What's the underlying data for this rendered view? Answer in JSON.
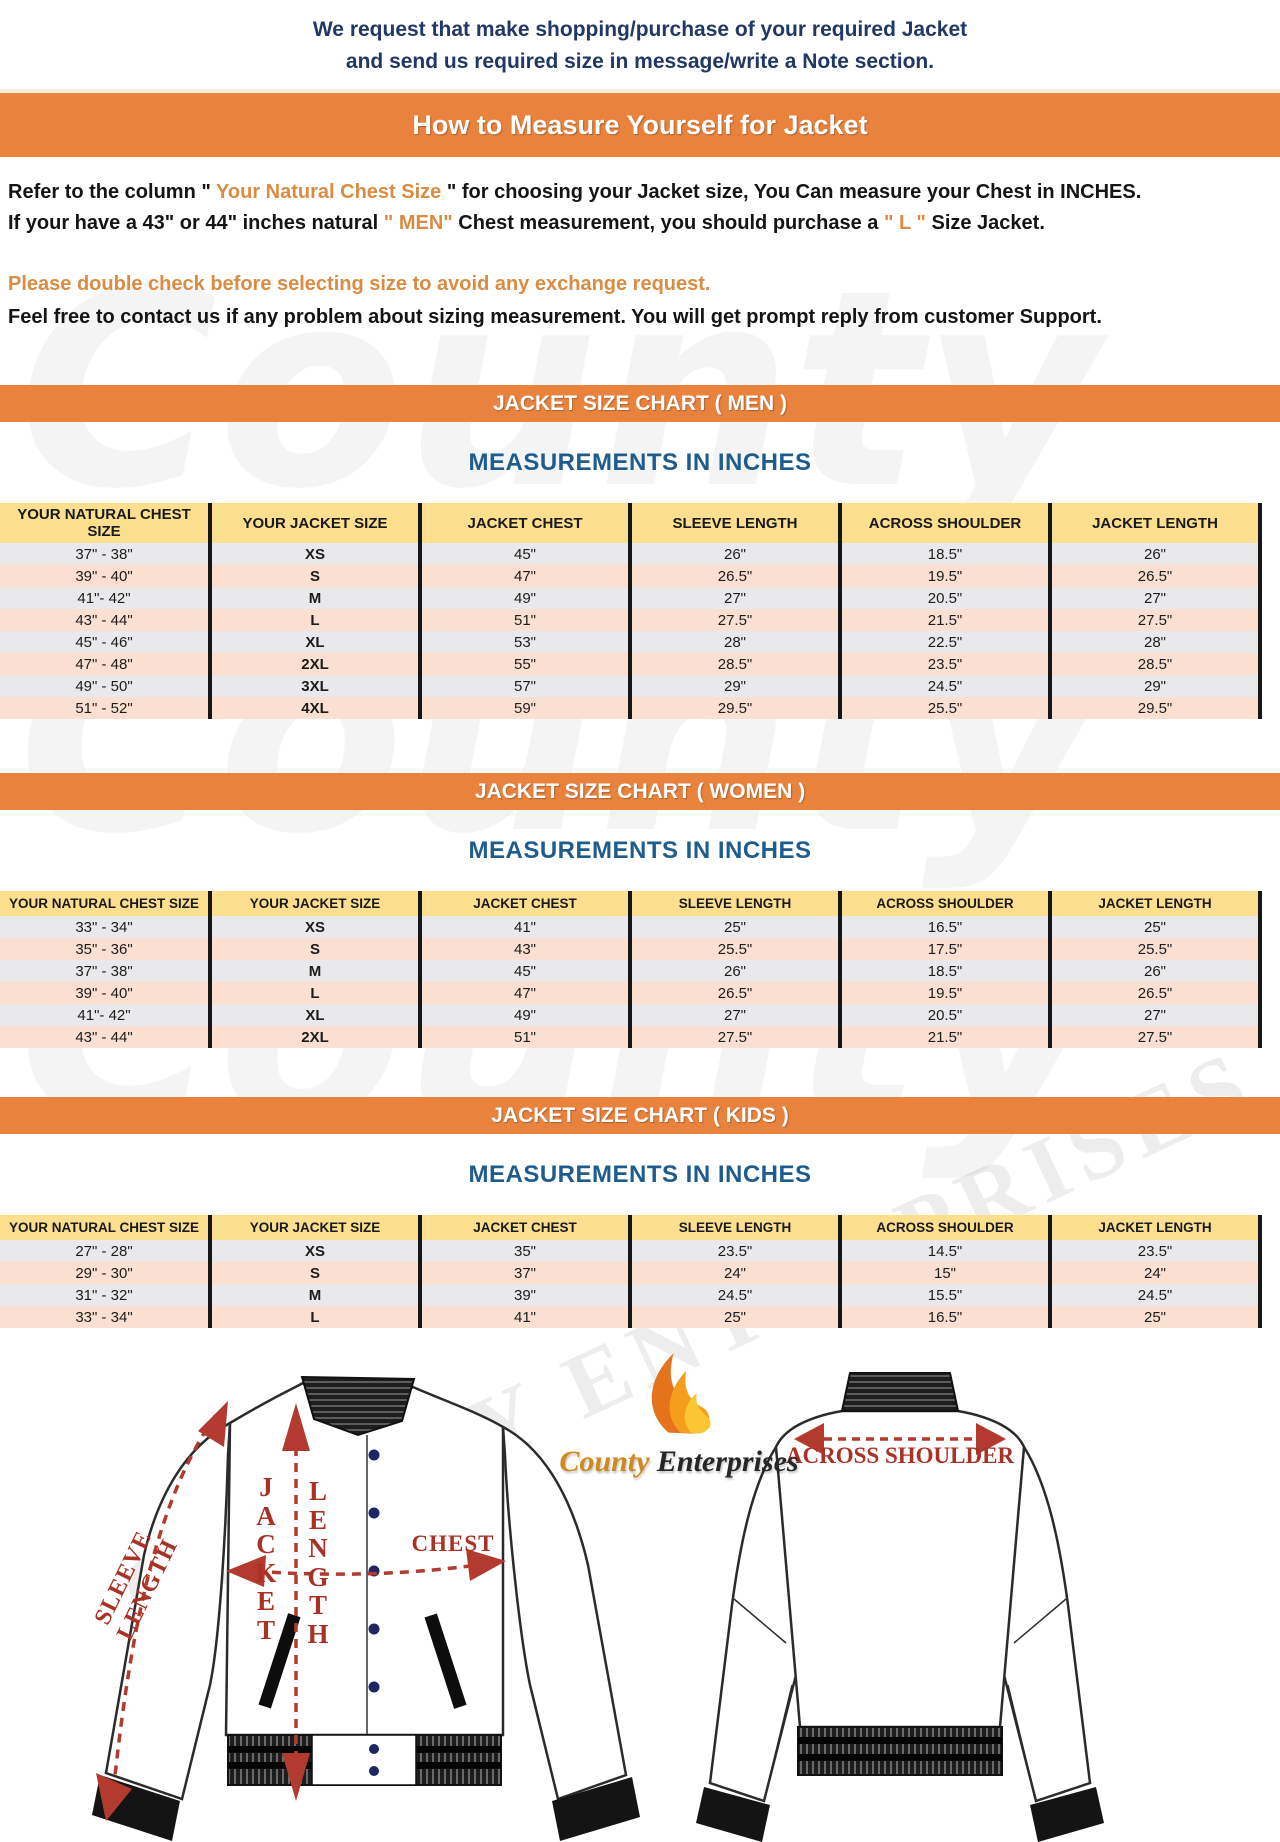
{
  "colors": {
    "banner_orange": "#E8823C",
    "accent_orange": "#D98C42",
    "note_navy": "#1F3864",
    "heading_blue": "#1F5C8E",
    "diagram_red": "#A93226",
    "table_header_yellow": "#FBDE8E",
    "row_gray": "#E9E9EB",
    "row_pink": "#FBDFD0",
    "button_navy": "#1E2663"
  },
  "top_note": {
    "line1": "We request that make shopping/purchase of your required Jacket",
    "line2": "and send us required size in message/write a Note section."
  },
  "main_banner": "How to Measure Yourself for Jacket",
  "intro": {
    "refer": {
      "pre": "Refer to the column \" ",
      "highlight": "Your Natural Chest Size",
      "post": " \" for choosing your Jacket size, You Can measure your Chest in INCHES."
    },
    "size_line": {
      "pre": "If your have a 43\" or 44\"  inches natural ",
      "men": "\" MEN\"",
      "mid": " Chest measurement, you should purchase a ",
      "l": "\" L \"",
      "post": " Size Jacket."
    },
    "warning": "Please double check before selecting size to avoid any exchange request.",
    "contact": "Feel free to contact us if any problem about sizing measurement. You will get prompt reply from customer Support."
  },
  "charts": {
    "measurements_heading": "MEASUREMENTS IN INCHES",
    "columns": [
      "YOUR NATURAL CHEST SIZE",
      "YOUR JACKET SIZE",
      "JACKET CHEST",
      "SLEEVE LENGTH",
      "ACROSS SHOULDER",
      "JACKET LENGTH"
    ],
    "men": {
      "title": "JACKET SIZE CHART ( MEN )",
      "rows": [
        [
          "37\" - 38\"",
          "XS",
          "45\"",
          "26\"",
          "18.5\"",
          "26\""
        ],
        [
          "39\" - 40\"",
          "S",
          "47\"",
          "26.5\"",
          "19.5\"",
          "26.5\""
        ],
        [
          "41\"- 42\"",
          "M",
          "49\"",
          "27\"",
          "20.5\"",
          "27\""
        ],
        [
          "43\" - 44\"",
          "L",
          "51\"",
          "27.5\"",
          "21.5\"",
          "27.5\""
        ],
        [
          "45\" - 46\"",
          "XL",
          "53\"",
          "28\"",
          "22.5\"",
          "28\""
        ],
        [
          "47\" - 48\"",
          "2XL",
          "55\"",
          "28.5\"",
          "23.5\"",
          "28.5\""
        ],
        [
          "49\" - 50\"",
          "3XL",
          "57\"",
          "29\"",
          "24.5\"",
          "29\""
        ],
        [
          "51\" - 52\"",
          "4XL",
          "59\"",
          "29.5\"",
          "25.5\"",
          "29.5\""
        ]
      ]
    },
    "women": {
      "title": "JACKET SIZE CHART ( WOMEN )",
      "rows": [
        [
          "33\" - 34\"",
          "XS",
          "41\"",
          "25\"",
          "16.5\"",
          "25\""
        ],
        [
          "35\" - 36\"",
          "S",
          "43\"",
          "25.5\"",
          "17.5\"",
          "25.5\""
        ],
        [
          "37\" - 38\"",
          "M",
          "45\"",
          "26\"",
          "18.5\"",
          "26\""
        ],
        [
          "39\" - 40\"",
          "L",
          "47\"",
          "26.5\"",
          "19.5\"",
          "26.5\""
        ],
        [
          "41\"- 42\"",
          "XL",
          "49\"",
          "27\"",
          "20.5\"",
          "27\""
        ],
        [
          "43\" - 44\"",
          "2XL",
          "51\"",
          "27.5\"",
          "21.5\"",
          "27.5\""
        ]
      ]
    },
    "kids": {
      "title": "JACKET SIZE CHART ( KIDS )",
      "rows": [
        [
          "27\" - 28\"",
          "XS",
          "35\"",
          "23.5\"",
          "14.5\"",
          "23.5\""
        ],
        [
          "29\" - 30\"",
          "S",
          "37\"",
          "24\"",
          "15\"",
          "24\""
        ],
        [
          "31\" - 32\"",
          "M",
          "39\"",
          "24.5\"",
          "15.5\"",
          "24.5\""
        ],
        [
          "33\" - 34\"",
          "L",
          "41\"",
          "25\"",
          "16.5\"",
          "25\""
        ]
      ]
    }
  },
  "diagram": {
    "sleeve_length": "SLEEVE LENGTH",
    "jacket": "JACKET",
    "length": "LENGTH",
    "chest": "CHEST",
    "across_shoulder": "ACROSS SHOULDER",
    "logo_county": "County",
    "logo_enterprises": "Enterprises"
  },
  "watermark": {
    "county": "County",
    "enterprises": "COUNTY ENTERPRISES"
  }
}
